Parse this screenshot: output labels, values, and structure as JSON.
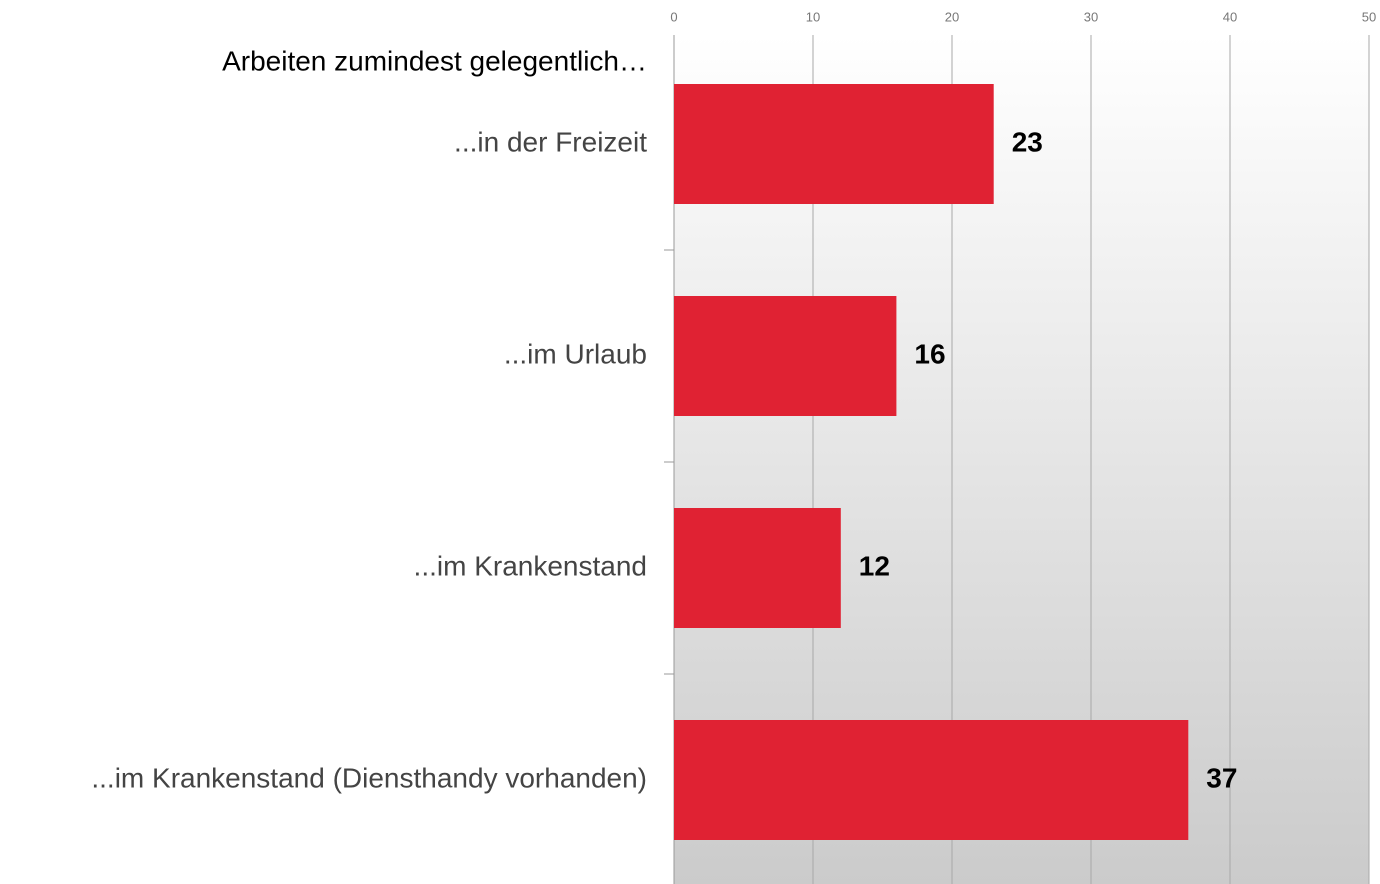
{
  "chart_data": {
    "type": "bar",
    "orientation": "horizontal",
    "title": "Arbeiten zumindest gelegentlich…",
    "categories": [
      "...in der Freizeit",
      "...im Urlaub",
      "...im Krankenstand",
      "...im Krankenstand (Diensthandy vorhanden)"
    ],
    "values": [
      23,
      16,
      12,
      37
    ],
    "color": "#e02233",
    "xlim": [
      0,
      50
    ],
    "xticks": [
      0,
      10,
      20,
      30,
      40,
      50
    ],
    "grid": true
  }
}
